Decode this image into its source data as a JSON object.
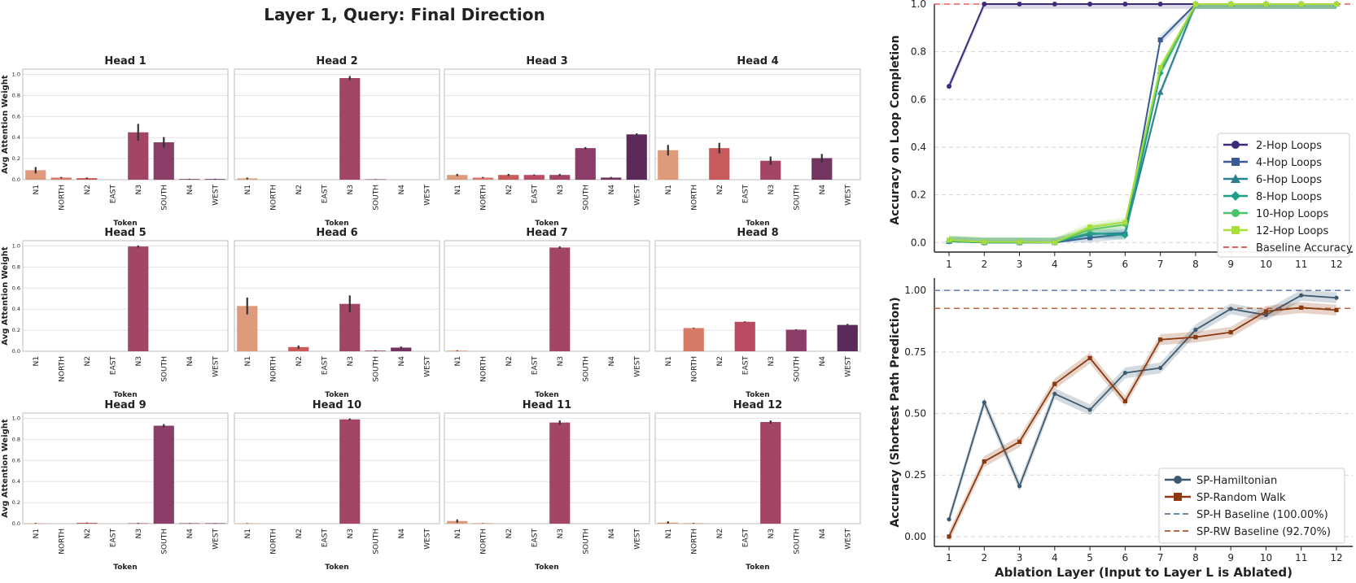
{
  "colors": {
    "N1": "#de9a7a",
    "NORTH": "#d77a68",
    "N2": "#c95a5c",
    "EAST": "#b94c62",
    "N3": "#a34567",
    "SOUTH": "#8c3d67",
    "N4": "#733462",
    "WEST": "#5c2a5a",
    "grid": "#e3e3e3",
    "frame": "#bdbdbd",
    "err": "#333333",
    "hop2": "#3f2a7a",
    "hop4": "#3a5a94",
    "hop6": "#2c7f8f",
    "hop8": "#1f9e89",
    "hop10": "#4cc26c",
    "hop12": "#a8dd3a",
    "baseline_red": "#e06060",
    "sp_h": "#3d5a70",
    "sp_rw": "#8b3a10",
    "sp_h_base": "#6a86a6",
    "sp_rw_base": "#b06a46"
  },
  "chart_data": [
    {
      "type": "bar",
      "title": "Layer 1, Query: Final Direction",
      "xlabel": "Token",
      "ylabel": "Avg Attention Weight",
      "ylim": [
        0,
        1.05
      ],
      "yticks": [
        "0.0",
        "0.2",
        "0.4",
        "0.6",
        "0.8",
        "1.0"
      ],
      "categories": [
        "N1",
        "NORTH",
        "N2",
        "EAST",
        "N3",
        "SOUTH",
        "N4",
        "WEST"
      ],
      "panels": [
        {
          "title": "Head 1",
          "values": [
            0.09,
            0.02,
            0.015,
            0.0,
            0.45,
            0.355,
            0.006,
            0.006
          ],
          "err": [
            0.03,
            0.006,
            0.006,
            0,
            0.08,
            0.05,
            0.003,
            0.003
          ]
        },
        {
          "title": "Head 2",
          "values": [
            0.012,
            0.0,
            0.0,
            0.0,
            0.965,
            0.004,
            0.0,
            0.0
          ],
          "err": [
            0.008,
            0,
            0,
            0,
            0.02,
            0.002,
            0,
            0
          ]
        },
        {
          "title": "Head 3",
          "values": [
            0.045,
            0.02,
            0.045,
            0.045,
            0.045,
            0.3,
            0.02,
            0.43
          ],
          "err": [
            0.01,
            0.006,
            0.01,
            0.005,
            0.01,
            0.01,
            0.006,
            0.01
          ]
        },
        {
          "title": "Head 4",
          "values": [
            0.28,
            0.0,
            0.3,
            0.0,
            0.18,
            0.0,
            0.205,
            0.0
          ],
          "err": [
            0.05,
            0,
            0.05,
            0,
            0.04,
            0,
            0.04,
            0
          ]
        },
        {
          "title": "Head 5",
          "values": [
            0.0,
            0.0,
            0.0,
            0.0,
            0.995,
            0.0,
            0.0,
            0.0
          ],
          "err": [
            0,
            0,
            0,
            0,
            0.01,
            0,
            0,
            0
          ]
        },
        {
          "title": "Head 6",
          "values": [
            0.43,
            0.0,
            0.04,
            0.0,
            0.45,
            0.006,
            0.035,
            0.0
          ],
          "err": [
            0.08,
            0,
            0.015,
            0,
            0.08,
            0.003,
            0.01,
            0
          ]
        },
        {
          "title": "Head 7",
          "values": [
            0.006,
            0.0,
            0.0,
            0.0,
            0.985,
            0.0,
            0.0,
            0.0
          ],
          "err": [
            0.004,
            0,
            0,
            0,
            0.01,
            0,
            0,
            0
          ]
        },
        {
          "title": "Head 8",
          "values": [
            0.0,
            0.22,
            0.0,
            0.28,
            0.0,
            0.205,
            0.0,
            0.25
          ],
          "err": [
            0,
            0.004,
            0,
            0.004,
            0,
            0.004,
            0,
            0.01
          ]
        },
        {
          "title": "Head 9",
          "values": [
            0.004,
            0.0,
            0.008,
            0.0,
            0.004,
            0.93,
            0.004,
            0.004
          ],
          "err": [
            0.003,
            0,
            0.003,
            0,
            0.003,
            0.015,
            0.002,
            0.002
          ]
        },
        {
          "title": "Head 10",
          "values": [
            0.004,
            0.0,
            0.0,
            0.0,
            0.99,
            0.0,
            0.0,
            0.0
          ],
          "err": [
            0.002,
            0,
            0,
            0,
            0.008,
            0,
            0,
            0
          ]
        },
        {
          "title": "Head 11",
          "values": [
            0.025,
            0.004,
            0.0,
            0.0,
            0.96,
            0.0,
            0.0,
            0.0
          ],
          "err": [
            0.015,
            0.002,
            0,
            0,
            0.02,
            0,
            0,
            0
          ]
        },
        {
          "title": "Head 12",
          "values": [
            0.01,
            0.004,
            0.0,
            0.0,
            0.965,
            0.0,
            0.0,
            0.0
          ],
          "err": [
            0.012,
            0.003,
            0,
            0,
            0.015,
            0,
            0,
            0
          ]
        }
      ]
    },
    {
      "type": "line",
      "title": "",
      "xlabel": "",
      "ylabel": "Accuracy on Loop Completion",
      "x": [
        1,
        2,
        3,
        4,
        5,
        6,
        7,
        8,
        9,
        10,
        11,
        12
      ],
      "ylim": [
        -0.04,
        1.0
      ],
      "yticks": [
        "0.0",
        "0.2",
        "0.4",
        "0.6",
        "0.8",
        "1.0"
      ],
      "xticks": [
        "1",
        "2",
        "3",
        "4",
        "5",
        "6",
        "7",
        "8",
        "9",
        "10",
        "11",
        "12"
      ],
      "baseline": {
        "label": "Baseline Accuracy",
        "value": 1.0
      },
      "legend_position": "lower-right",
      "series": [
        {
          "name": "2-Hop Loops",
          "marker": "circle",
          "values": [
            0.655,
            1.0,
            1.0,
            1.0,
            1.0,
            1.0,
            1.0,
            1.0,
            1.0,
            1.0,
            1.0,
            1.0
          ]
        },
        {
          "name": "4-Hop Loops",
          "marker": "square",
          "values": [
            0.005,
            0.0,
            0.0,
            0.0,
            0.02,
            0.035,
            0.85,
            1.0,
            1.0,
            1.0,
            1.0,
            1.0
          ]
        },
        {
          "name": "6-Hop Loops",
          "marker": "triangle",
          "values": [
            0.005,
            0.0,
            0.0,
            0.0,
            0.035,
            0.04,
            0.63,
            1.0,
            1.0,
            1.0,
            1.0,
            1.0
          ]
        },
        {
          "name": "8-Hop Loops",
          "marker": "diamond",
          "values": [
            0.005,
            0.0,
            0.0,
            0.0,
            0.04,
            0.03,
            0.71,
            1.0,
            1.0,
            1.0,
            1.0,
            1.0
          ]
        },
        {
          "name": "10-Hop Loops",
          "marker": "circle",
          "values": [
            0.01,
            0.002,
            0.002,
            0.0,
            0.055,
            0.075,
            0.725,
            1.0,
            1.0,
            1.0,
            1.0,
            1.0
          ]
        },
        {
          "name": "12-Hop Loops",
          "marker": "square",
          "values": [
            0.01,
            0.002,
            0.002,
            0.0,
            0.065,
            0.085,
            0.735,
            1.0,
            1.0,
            1.0,
            1.0,
            1.0
          ]
        }
      ]
    },
    {
      "type": "line",
      "title": "",
      "xlabel": "Ablation Layer (Input to Layer L is Ablated)",
      "ylabel": "Accuracy (Shortest Path Prediction)",
      "x": [
        1,
        2,
        3,
        4,
        5,
        6,
        7,
        8,
        9,
        10,
        11,
        12
      ],
      "ylim": [
        -0.04,
        1.05
      ],
      "yticks": [
        "0.00",
        "0.25",
        "0.50",
        "0.75",
        "1.00"
      ],
      "xticks": [
        "1",
        "2",
        "3",
        "4",
        "5",
        "6",
        "7",
        "8",
        "9",
        "10",
        "11",
        "12"
      ],
      "legend_position": "lower-right",
      "series": [
        {
          "name": "SP-Hamiltonian",
          "marker": "circle",
          "values": [
            0.07,
            0.545,
            0.205,
            0.58,
            0.515,
            0.665,
            0.685,
            0.84,
            0.925,
            0.9,
            0.98,
            0.97
          ]
        },
        {
          "name": "SP-Random Walk",
          "marker": "square",
          "values": [
            0.0,
            0.305,
            0.385,
            0.62,
            0.725,
            0.55,
            0.8,
            0.81,
            0.83,
            0.915,
            0.93,
            0.92
          ]
        }
      ],
      "baselines": [
        {
          "label": "SP-H Baseline (100.00%)",
          "value": 1.0
        },
        {
          "label": "SP-RW Baseline (92.70%)",
          "value": 0.927
        }
      ]
    }
  ]
}
